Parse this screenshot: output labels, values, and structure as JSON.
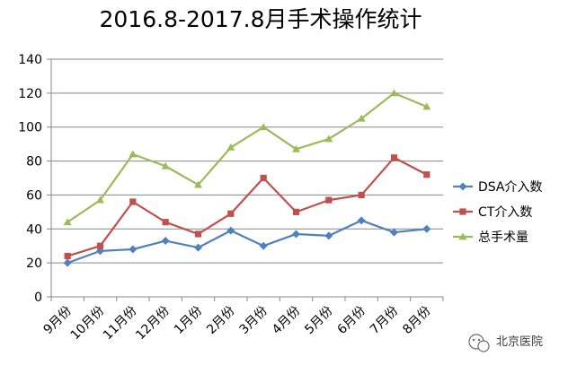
{
  "chart_data": {
    "type": "line",
    "title": "2016.8-2017.8月手术操作统计",
    "xlabel": "",
    "ylabel": "",
    "categories": [
      "9月份",
      "10月份",
      "11月份",
      "12月份",
      "1月份",
      "2月份",
      "3月份",
      "4月份",
      "5月份",
      "6月份",
      "7月份",
      "8月份"
    ],
    "ylim": [
      0,
      140
    ],
    "yticks": [
      0,
      20,
      40,
      60,
      80,
      100,
      120,
      140
    ],
    "grid": true,
    "legend_position": "right",
    "series": [
      {
        "name": "DSA介入数",
        "color": "#4f81bd",
        "marker": "diamond",
        "values": [
          20,
          27,
          28,
          33,
          29,
          39,
          30,
          37,
          36,
          45,
          38,
          40
        ]
      },
      {
        "name": "CT介入数",
        "color": "#c0504d",
        "marker": "square",
        "values": [
          24,
          30,
          56,
          44,
          37,
          49,
          70,
          50,
          57,
          60,
          82,
          72
        ]
      },
      {
        "name": "总手术量",
        "color": "#9bbb59",
        "marker": "triangle",
        "values": [
          44,
          57,
          84,
          77,
          66,
          88,
          100,
          87,
          93,
          105,
          120,
          112
        ]
      }
    ]
  },
  "watermark": {
    "text": "北京医院"
  }
}
